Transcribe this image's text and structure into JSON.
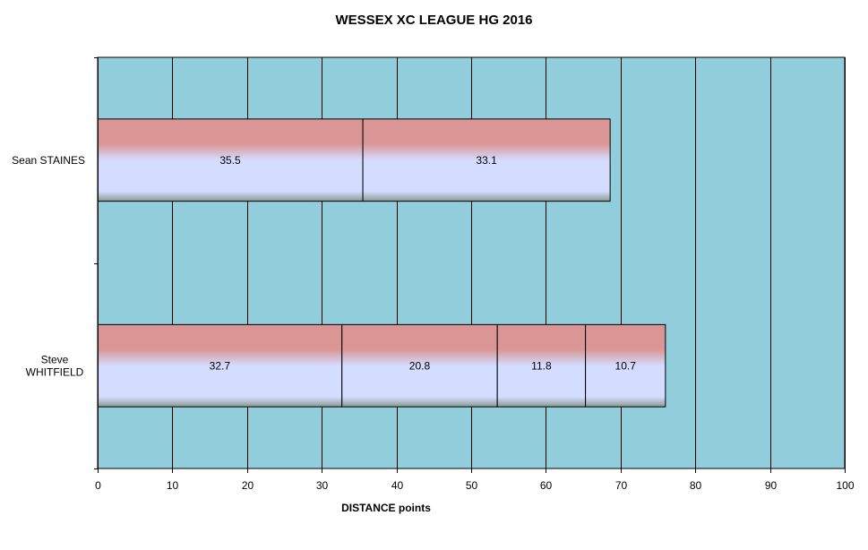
{
  "chart_data": {
    "type": "bar",
    "orientation": "horizontal",
    "stacked": true,
    "title": "WESSEX XC LEAGUE HG 2016",
    "xlabel": "DISTANCE  points",
    "ylabel": "",
    "xlim": [
      0,
      100
    ],
    "x_ticks": [
      0,
      10,
      20,
      30,
      40,
      50,
      60,
      70,
      80,
      90,
      100
    ],
    "grid": "vertical",
    "plot_background": "#92cddc",
    "bar_colors": {
      "top": "#da9694",
      "middle": "#d4dcff",
      "bottom": "#8a9a90"
    },
    "categories": [
      {
        "label_lines": [
          "Sean STAINES"
        ],
        "segments": [
          35.5,
          33.1
        ]
      },
      {
        "label_lines": [
          "Steve",
          "WHITFIELD"
        ],
        "segments": [
          32.7,
          20.8,
          11.8,
          10.7
        ]
      }
    ]
  }
}
